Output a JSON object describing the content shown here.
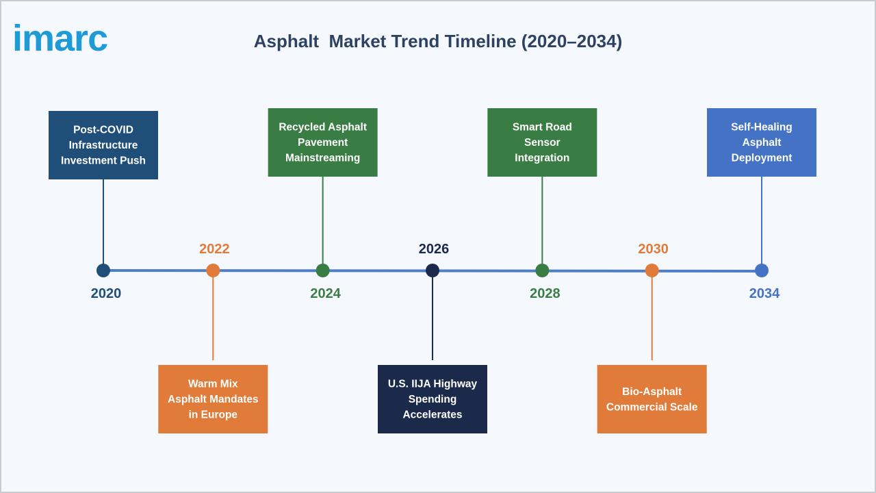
{
  "logo": "imarc",
  "title": "Asphalt  Market Trend Timeline (2020–2034)",
  "events": [
    {
      "year": "2020",
      "lines": [
        "Post-COVID",
        "Infrastructure",
        "Investment Push"
      ]
    },
    {
      "year": "2022",
      "lines": [
        "Warm Mix",
        "Asphalt Mandates",
        "in Europe"
      ]
    },
    {
      "year": "2024",
      "lines": [
        "Recycled Asphalt",
        "Pavement",
        "Mainstreaming"
      ]
    },
    {
      "year": "2026",
      "lines": [
        "U.S. IIJA Highway",
        "Spending",
        "Accelerates"
      ]
    },
    {
      "year": "2028",
      "lines": [
        "Smart Road",
        "Sensor",
        "Integration"
      ]
    },
    {
      "year": "2030",
      "lines": [
        "Bio-Asphalt",
        "Commercial Scale"
      ]
    },
    {
      "year": "2034",
      "lines": [
        "Self-Healing",
        "Asphalt",
        "Deployment"
      ]
    }
  ]
}
